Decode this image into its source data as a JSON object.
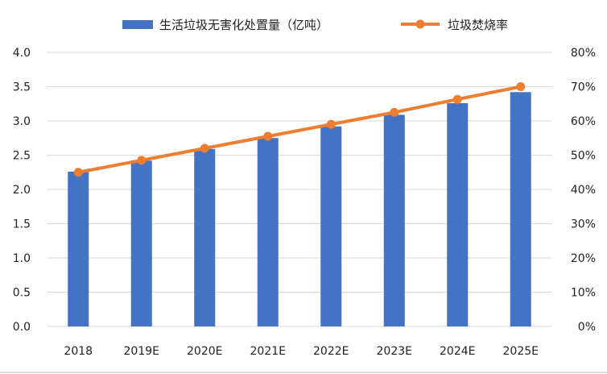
{
  "chart_data": {
    "type": "bar",
    "categories": [
      "2018",
      "2019E",
      "2020E",
      "2021E",
      "2022E",
      "2023E",
      "2024E",
      "2025E"
    ],
    "series": [
      {
        "name": "生活垃圾无害化处置量（亿吨）",
        "type": "bar",
        "axis": "left",
        "color": "#4472C4",
        "values": [
          2.26,
          2.42,
          2.59,
          2.75,
          2.92,
          3.09,
          3.26,
          3.42
        ]
      },
      {
        "name": "垃圾焚烧率",
        "type": "line",
        "axis": "right",
        "color": "#ED7D31",
        "values": [
          45,
          48.5,
          52,
          55.5,
          59,
          62.5,
          66.3,
          70
        ]
      }
    ],
    "ylim_left": [
      0,
      4.0
    ],
    "yticks_left": [
      "0.0",
      "0.5",
      "1.0",
      "1.5",
      "2.0",
      "2.5",
      "3.0",
      "3.5",
      "4.0"
    ],
    "ylim_right": [
      0,
      80
    ],
    "yticks_right": [
      "0%",
      "10%",
      "20%",
      "30%",
      "40%",
      "50%",
      "60%",
      "70%",
      "80%"
    ],
    "grid": true,
    "legend_position": "top"
  }
}
